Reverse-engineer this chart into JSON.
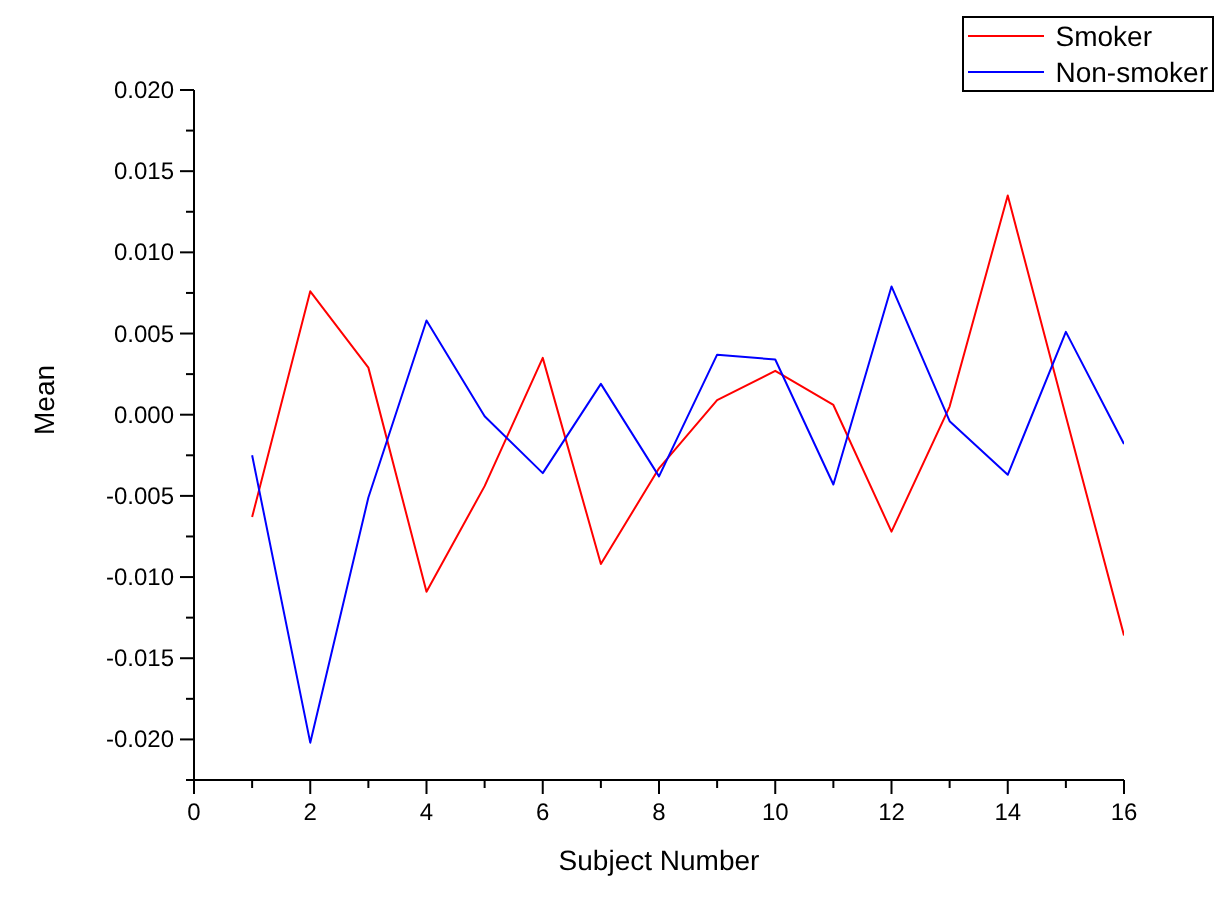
{
  "chart_data": {
    "type": "line",
    "xlabel": "Subject Number",
    "ylabel": "Mean",
    "x": [
      1,
      2,
      3,
      4,
      5,
      6,
      7,
      8,
      9,
      10,
      11,
      12,
      13,
      14,
      15,
      16
    ],
    "series": [
      {
        "name": "Smoker",
        "color": "#ff0000",
        "values": [
          -0.0063,
          0.0076,
          0.0029,
          -0.0109,
          -0.0044,
          0.0035,
          -0.0092,
          -0.0033,
          0.0009,
          0.0027,
          0.0006,
          -0.0072,
          0.0005,
          0.0135,
          -0.0001,
          -0.0136
        ]
      },
      {
        "name": "Non-smoker",
        "color": "#0000ff",
        "values": [
          -0.0025,
          -0.0202,
          -0.0051,
          0.0058,
          -0.0001,
          -0.0036,
          0.0019,
          -0.0038,
          0.0037,
          0.0034,
          -0.0043,
          0.0079,
          -0.0004,
          -0.0037,
          0.0051,
          -0.0018
        ]
      }
    ],
    "xlim": [
      0,
      16
    ],
    "xticks": [
      0,
      {
        "value": 1,
        "label": null
      },
      2,
      {
        "value": 3,
        "label": null
      },
      4,
      {
        "value": 5,
        "label": null
      },
      6,
      {
        "value": 7,
        "label": null
      },
      8,
      {
        "value": 9,
        "label": null
      },
      10,
      {
        "value": 11,
        "label": null
      },
      12,
      {
        "value": 13,
        "label": null
      },
      14,
      {
        "value": 15,
        "label": null
      },
      16
    ],
    "ylim": [
      -0.0225,
      0.02
    ],
    "yticks": [
      {
        "value": -0.0225,
        "label": null
      },
      {
        "value": -0.02,
        "label": "-0.020"
      },
      {
        "value": -0.0175,
        "label": null
      },
      {
        "value": -0.015,
        "label": "-0.015"
      },
      {
        "value": -0.0125,
        "label": null
      },
      {
        "value": -0.01,
        "label": "-0.010"
      },
      {
        "value": -0.0075,
        "label": null
      },
      {
        "value": -0.005,
        "label": "-0.005"
      },
      {
        "value": -0.0025,
        "label": null
      },
      {
        "value": 0,
        "label": "0.000"
      },
      {
        "value": 0.0025,
        "label": null
      },
      {
        "value": 0.005,
        "label": "0.005"
      },
      {
        "value": 0.0075,
        "label": null
      },
      {
        "value": 0.01,
        "label": "0.010"
      },
      {
        "value": 0.0125,
        "label": null
      },
      {
        "value": 0.015,
        "label": "0.015"
      },
      {
        "value": 0.0175,
        "label": null
      },
      {
        "value": 0.02,
        "label": "0.020"
      }
    ],
    "grid": false,
    "legend": "top right",
    "marker": "none",
    "line_style": "solid"
  }
}
